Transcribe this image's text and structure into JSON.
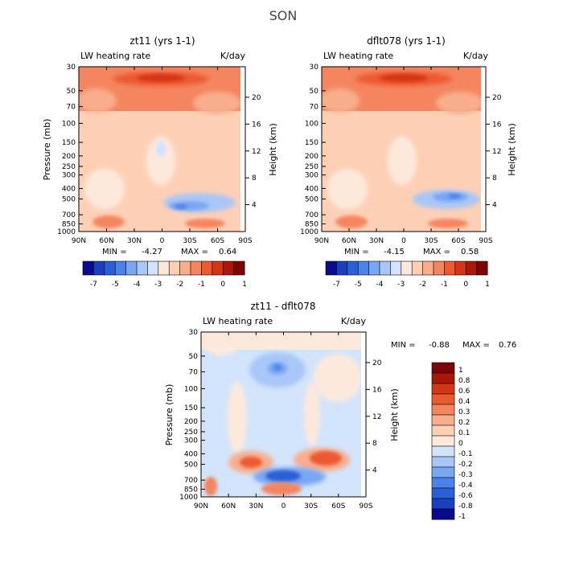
{
  "figure_title": "SON",
  "chart_data": [
    {
      "type": "heatmap",
      "title": "zt11 (yrs 1-1)",
      "subtitle_left": "LW heating rate",
      "subtitle_right": "K/day",
      "xlabel": "",
      "ylabel": "Pressure (mb)",
      "ylabel_right": "Height (km)",
      "x_ticks": [
        "90N",
        "60N",
        "30N",
        "0",
        "30S",
        "60S",
        "90S"
      ],
      "y_ticks_pressure": [
        "30",
        "50",
        "70",
        "100",
        "150",
        "200",
        "250",
        "300",
        "400",
        "500",
        "700",
        "850",
        "1000"
      ],
      "y_ticks_pressure_values": [
        30,
        50,
        70,
        100,
        150,
        200,
        250,
        300,
        400,
        500,
        700,
        850,
        1000
      ],
      "y_ticks_height": [
        "20",
        "16",
        "12",
        "8",
        "4"
      ],
      "y_ticks_height_values": [
        20,
        16,
        12,
        8,
        4
      ],
      "min_label": "MIN =",
      "min_value": "-4.27",
      "max_label": "MAX =",
      "max_value": "0.64",
      "colorbar_labels": [
        "-7",
        "-5",
        "-4",
        "-3",
        "-2",
        "-1",
        "0",
        "1"
      ],
      "colorbar_colors": [
        "#0a0a8c",
        "#1a3fbf",
        "#2a5fd8",
        "#4b82ea",
        "#7aa6f2",
        "#a8c6f7",
        "#d2e4fb",
        "#fde9dc",
        "#fdd0b6",
        "#f8ad8c",
        "#f4855f",
        "#ec5a32",
        "#d43515",
        "#a81708",
        "#7d0505"
      ],
      "background_level": "#fdd0b6"
    },
    {
      "type": "heatmap",
      "title": "dflt078 (yrs 1-1)",
      "subtitle_left": "LW heating rate",
      "subtitle_right": "K/day",
      "xlabel": "",
      "ylabel": "Pressure (mb)",
      "ylabel_right": "Height (km)",
      "x_ticks": [
        "90N",
        "60N",
        "30N",
        "0",
        "30S",
        "60S",
        "90S"
      ],
      "y_ticks_pressure": [
        "30",
        "50",
        "70",
        "100",
        "150",
        "200",
        "250",
        "300",
        "400",
        "500",
        "700",
        "850",
        "1000"
      ],
      "y_ticks_pressure_values": [
        30,
        50,
        70,
        100,
        150,
        200,
        250,
        300,
        400,
        500,
        700,
        850,
        1000
      ],
      "y_ticks_height": [
        "20",
        "16",
        "12",
        "8",
        "4"
      ],
      "y_ticks_height_values": [
        20,
        16,
        12,
        8,
        4
      ],
      "min_label": "MIN =",
      "min_value": "-4.15",
      "max_label": "MAX =",
      "max_value": "0.58",
      "colorbar_labels": [
        "-7",
        "-5",
        "-4",
        "-3",
        "-2",
        "-1",
        "0",
        "1"
      ],
      "colorbar_colors": [
        "#0a0a8c",
        "#1a3fbf",
        "#2a5fd8",
        "#4b82ea",
        "#7aa6f2",
        "#a8c6f7",
        "#d2e4fb",
        "#fde9dc",
        "#fdd0b6",
        "#f8ad8c",
        "#f4855f",
        "#ec5a32",
        "#d43515",
        "#a81708",
        "#7d0505"
      ],
      "background_level": "#fdd0b6"
    },
    {
      "type": "heatmap",
      "title": "zt11 - dflt078",
      "subtitle_left": "LW heating rate",
      "subtitle_right": "K/day",
      "xlabel": "",
      "ylabel": "Pressure (mb)",
      "ylabel_right": "Height (km)",
      "x_ticks": [
        "90N",
        "60N",
        "30N",
        "0",
        "30S",
        "60S",
        "90S"
      ],
      "y_ticks_pressure": [
        "30",
        "50",
        "70",
        "100",
        "150",
        "200",
        "250",
        "300",
        "400",
        "500",
        "700",
        "850",
        "1000"
      ],
      "y_ticks_pressure_values": [
        30,
        50,
        70,
        100,
        150,
        200,
        250,
        300,
        400,
        500,
        700,
        850,
        1000
      ],
      "y_ticks_height": [
        "20",
        "16",
        "12",
        "8",
        "4"
      ],
      "y_ticks_height_values": [
        20,
        16,
        12,
        8,
        4
      ],
      "min_label": "MIN =",
      "min_value": "-0.88",
      "max_label": "MAX =",
      "max_value": "0.76",
      "colorbar_labels": [
        "1",
        "0.8",
        "0.6",
        "0.4",
        "0.3",
        "0.2",
        "0.1",
        "0",
        "-0.1",
        "-0.2",
        "-0.3",
        "-0.4",
        "-0.6",
        "-0.8",
        "-1"
      ],
      "colorbar_colors": [
        "#7d0505",
        "#a81708",
        "#d43515",
        "#ec5a32",
        "#f4855f",
        "#f8ad8c",
        "#fdd0b6",
        "#fde9dc",
        "#d2e4fb",
        "#a8c6f7",
        "#7aa6f2",
        "#4b82ea",
        "#2a5fd8",
        "#1a3fbf",
        "#0a0a8c"
      ],
      "background_level": "#d2e4fb"
    }
  ]
}
